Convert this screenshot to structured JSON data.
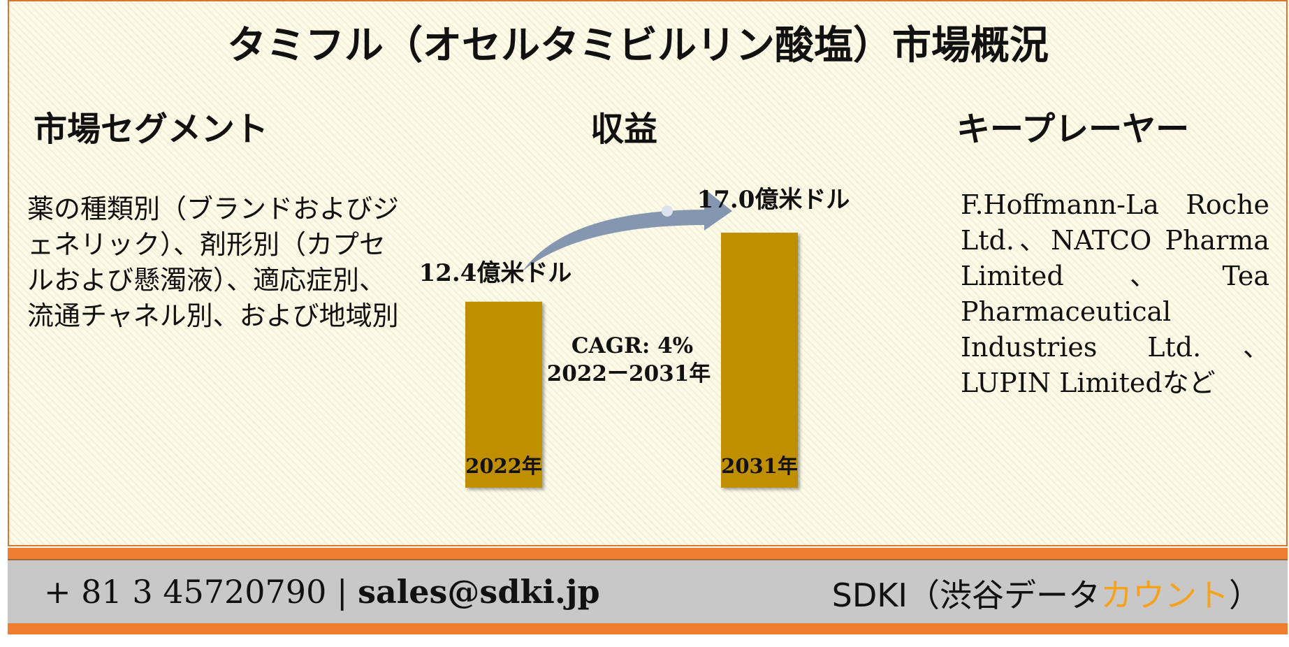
{
  "title": "タミフル（オセルタミビルリン酸塩）市場概況",
  "sections": {
    "segments": {
      "heading": "市場セグメント",
      "text": "薬の種類別（ブランドおよびジェネリック）、剤形別（カプセルおよび懸濁液）、適応症別、流通チャネル別、および地域別"
    },
    "revenue": {
      "heading": "収益"
    },
    "key_players": {
      "heading": "キープレーヤー",
      "text": "F.Hoffmann-La Roche Ltd.、NATCO Pharma Limited、Tea Pharmaceutical Industries Ltd.、LUPIN Limitedなど"
    }
  },
  "chart_data": {
    "type": "bar",
    "categories": [
      "2022年",
      "2031年"
    ],
    "values": [
      12.4,
      17.0
    ],
    "value_labels": [
      "12.4億米ドル",
      "17.0億米ドル"
    ],
    "cagr_label": "CAGR: 4%",
    "period_label": "2022ー2031年",
    "colors": {
      "bar": "#bf8f00",
      "arrow": "#8596b0"
    }
  },
  "footer": {
    "phone": "+ 81 3 45720790",
    "separator": "|",
    "email": "sales@sdki.jp",
    "brand_prefix": "SDKI（渋谷データ",
    "brand_accent": "カウント",
    "brand_suffix": "）",
    "colors": {
      "accent": "#f6a21d",
      "bar": "#ef7d31",
      "band": "#c8c8c8"
    }
  }
}
